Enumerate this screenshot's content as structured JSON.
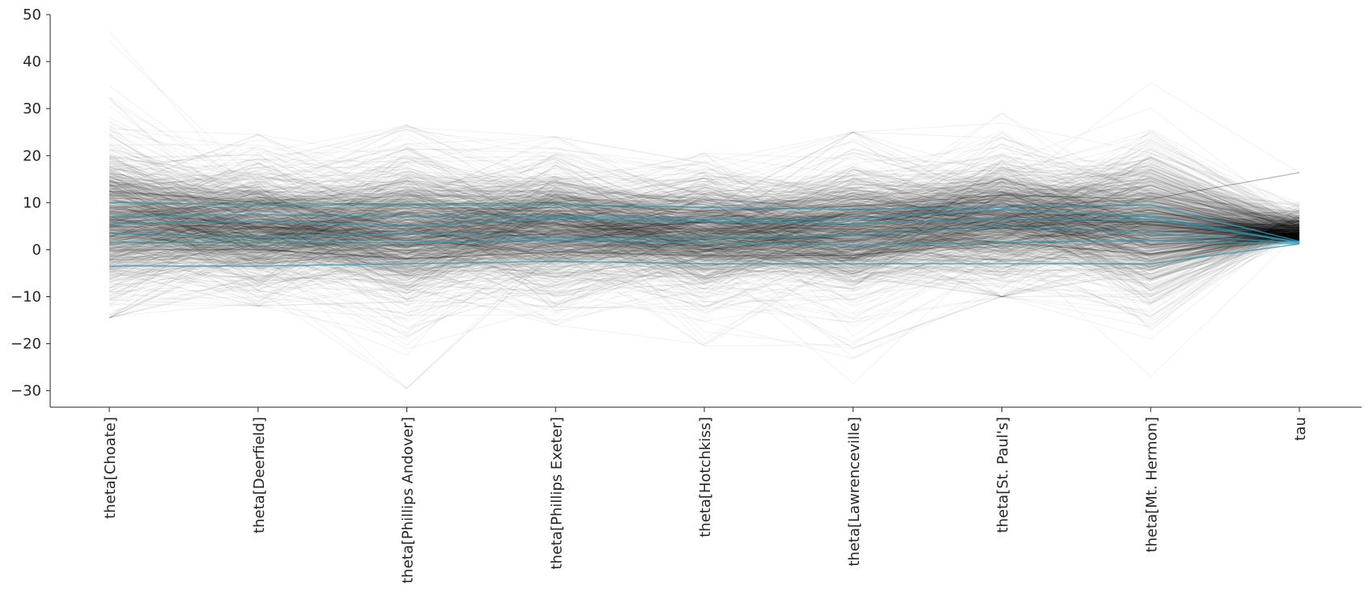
{
  "chart_data": {
    "type": "line",
    "subtype": "parallel-coordinates",
    "title": "",
    "xlabel": "",
    "ylabel": "",
    "categories": [
      "theta[Choate]",
      "theta[Deerfield]",
      "theta[Phillips Andover]",
      "theta[Phillips Exeter]",
      "theta[Hotchkiss]",
      "theta[Lawrenceville]",
      "theta[St. Paul's]",
      "theta[Mt. Hermon]",
      "tau"
    ],
    "ylim": [
      -33.5,
      50
    ],
    "yticks": [
      50,
      40,
      30,
      20,
      10,
      0,
      -10,
      -20,
      -30
    ],
    "ytick_labels": [
      "50",
      "40",
      "30",
      "20",
      "10",
      "0",
      "−10",
      "−20",
      "−30"
    ],
    "grid": false,
    "legend": "none",
    "colors": {
      "background": "#ffffff",
      "draws": "#000000",
      "highlight": "#2a9bb7",
      "axis": "#262626"
    },
    "draw_summary": {
      "count": 1000,
      "series_color": "black",
      "opacity": 0.05,
      "center": [
        6.2,
        5.0,
        3.9,
        4.7,
        3.5,
        4.0,
        6.6,
        4.9,
        3.6
      ],
      "spread": [
        7.0,
        5.5,
        6.5,
        5.8,
        5.3,
        5.8,
        5.6,
        6.5,
        3.0
      ],
      "observed_min": [
        -14.5,
        -12.0,
        -29.5,
        -16.0,
        -20.5,
        -28.5,
        -10.0,
        -27.0,
        0.9
      ],
      "observed_max": [
        46.5,
        24.5,
        26.5,
        24.0,
        20.5,
        25.0,
        29.0,
        35.5,
        20.5
      ]
    },
    "series": [
      {
        "values": [
          10.0,
          9.5,
          9.5,
          9.5,
          9.0,
          8.5,
          9.0,
          9.5,
          1.8
        ]
      },
      {
        "values": [
          7.0,
          7.5,
          7.0,
          7.0,
          6.5,
          6.5,
          8.5,
          7.0,
          1.6
        ]
      },
      {
        "values": [
          5.5,
          6.0,
          5.0,
          6.5,
          6.0,
          5.5,
          6.5,
          6.5,
          1.5
        ]
      },
      {
        "values": [
          3.5,
          2.5,
          3.5,
          2.5,
          2.5,
          3.0,
          5.0,
          3.5,
          1.4
        ]
      },
      {
        "values": [
          1.5,
          1.5,
          1.5,
          2.0,
          1.5,
          1.0,
          1.5,
          2.0,
          1.2
        ]
      },
      {
        "values": [
          -3.5,
          -3.5,
          -3.0,
          -2.5,
          -3.0,
          -3.0,
          -3.0,
          -3.0,
          1.2
        ]
      }
    ]
  }
}
